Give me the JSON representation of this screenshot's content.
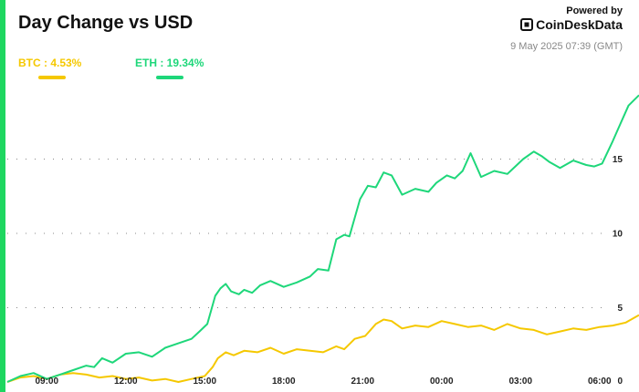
{
  "header": {
    "title": "Day Change vs USD",
    "powered_by": "Powered by",
    "brand": "CoinDeskData",
    "timestamp": "9 May 2025 07:39 (GMT)"
  },
  "colors": {
    "btc": "#f5c800",
    "eth": "#1ed77a",
    "accent_bar": "#1ed760",
    "grid": "#888888"
  },
  "legend": [
    {
      "label": "BTC : 4.53%",
      "color": "#f5c800"
    },
    {
      "label": "ETH : 19.34%",
      "color": "#1ed77a"
    }
  ],
  "chart_data": {
    "type": "line",
    "title": "Day Change vs USD",
    "xlabel": "",
    "ylabel": "",
    "xlim": [
      0,
      24
    ],
    "ylim": [
      0,
      20
    ],
    "x_ticks": [
      {
        "x": 1.5,
        "label": "09:00"
      },
      {
        "x": 4.5,
        "label": "12:00"
      },
      {
        "x": 7.5,
        "label": "15:00"
      },
      {
        "x": 10.5,
        "label": "18:00"
      },
      {
        "x": 13.5,
        "label": "21:00"
      },
      {
        "x": 16.5,
        "label": "00:00"
      },
      {
        "x": 19.5,
        "label": "03:00"
      },
      {
        "x": 22.5,
        "label": "06:00"
      }
    ],
    "y_ticks": [
      0,
      5,
      10,
      15
    ],
    "grid": "horizontal dotted",
    "legend_position": "top-left",
    "series": [
      {
        "name": "BTC",
        "color": "#f5c800",
        "x": [
          0,
          0.5,
          1.0,
          1.5,
          2.0,
          2.5,
          3.0,
          3.5,
          4.0,
          4.5,
          5.0,
          5.5,
          6.0,
          6.5,
          7.0,
          7.5,
          7.8,
          8.0,
          8.3,
          8.6,
          9.0,
          9.5,
          10.0,
          10.5,
          11.0,
          11.5,
          12.0,
          12.5,
          12.8,
          13.2,
          13.6,
          14.0,
          14.3,
          14.6,
          15.0,
          15.5,
          16.0,
          16.5,
          17.0,
          17.5,
          18.0,
          18.5,
          19.0,
          19.5,
          20.0,
          20.5,
          21.0,
          21.5,
          22.0,
          22.5,
          23.0,
          23.5,
          24.0
        ],
        "y": [
          0.0,
          0.3,
          0.4,
          0.2,
          0.5,
          0.6,
          0.5,
          0.3,
          0.4,
          0.2,
          0.3,
          0.1,
          0.2,
          0.0,
          0.2,
          0.4,
          1.0,
          1.6,
          2.0,
          1.8,
          2.1,
          2.0,
          2.3,
          1.9,
          2.2,
          2.1,
          2.0,
          2.4,
          2.2,
          2.9,
          3.1,
          3.9,
          4.2,
          4.1,
          3.6,
          3.8,
          3.7,
          4.1,
          3.9,
          3.7,
          3.8,
          3.5,
          3.9,
          3.6,
          3.5,
          3.2,
          3.4,
          3.6,
          3.5,
          3.7,
          3.8,
          4.0,
          4.5
        ]
      },
      {
        "name": "ETH",
        "color": "#1ed77a",
        "x": [
          0,
          0.5,
          1.0,
          1.5,
          2.0,
          2.5,
          3.0,
          3.3,
          3.6,
          4.0,
          4.5,
          5.0,
          5.5,
          6.0,
          6.5,
          7.0,
          7.3,
          7.6,
          7.9,
          8.1,
          8.3,
          8.5,
          8.8,
          9.0,
          9.3,
          9.6,
          10.0,
          10.5,
          11.0,
          11.5,
          11.8,
          12.2,
          12.5,
          12.8,
          13.0,
          13.4,
          13.7,
          14.0,
          14.3,
          14.6,
          15.0,
          15.5,
          16.0,
          16.3,
          16.7,
          17.0,
          17.3,
          17.6,
          18.0,
          18.5,
          19.0,
          19.3,
          19.6,
          20.0,
          20.3,
          20.6,
          21.0,
          21.5,
          22.0,
          22.3,
          22.6,
          23.0,
          23.3,
          23.6,
          24.0
        ],
        "y": [
          0.0,
          0.4,
          0.6,
          0.2,
          0.5,
          0.8,
          1.1,
          1.0,
          1.6,
          1.3,
          1.9,
          2.0,
          1.7,
          2.3,
          2.6,
          2.9,
          3.4,
          3.9,
          5.8,
          6.3,
          6.6,
          6.1,
          5.9,
          6.2,
          6.0,
          6.5,
          6.8,
          6.4,
          6.7,
          7.1,
          7.6,
          7.5,
          9.6,
          9.9,
          9.8,
          12.3,
          13.2,
          13.1,
          14.1,
          13.9,
          12.6,
          13.0,
          12.8,
          13.4,
          13.9,
          13.7,
          14.2,
          15.4,
          13.8,
          14.2,
          14.0,
          14.5,
          15.0,
          15.5,
          15.2,
          14.8,
          14.4,
          14.9,
          14.6,
          14.5,
          14.7,
          16.2,
          17.4,
          18.6,
          19.3
        ]
      }
    ]
  }
}
